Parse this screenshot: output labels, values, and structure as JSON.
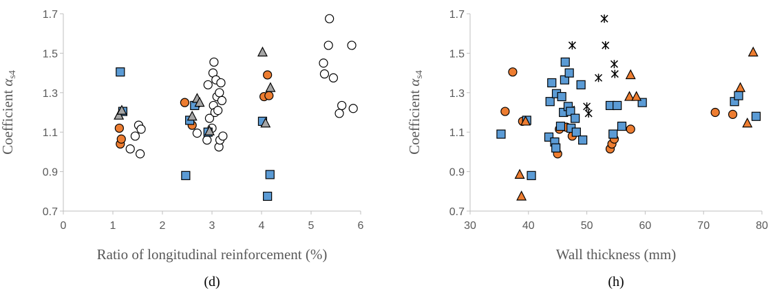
{
  "colors": {
    "orange": "#ED7D31",
    "blue": "#5B9BD5",
    "gray": "#A5A5A5",
    "axis": "#BFBFBF",
    "text": "#595959"
  },
  "chart_data": [
    {
      "type": "scatter",
      "panel_label": "(d)",
      "xlabel": "Ratio of longitudinal reinforcement (%)",
      "ylabel_main": "Coefficient ",
      "ylabel_symbol": "α",
      "ylabel_sub": "s4",
      "xlim": [
        0,
        6
      ],
      "ylim": [
        0.7,
        1.7
      ],
      "xticks": [
        "0",
        "1",
        "2",
        "3",
        "4",
        "5",
        "6"
      ],
      "yticks": [
        "0.7",
        "0.9",
        "1.1",
        "1.3",
        "1.5",
        "1.7"
      ],
      "series": [
        {
          "marker": "circle-open",
          "points": [
            [
              1.35,
              1.015
            ],
            [
              1.45,
              1.08
            ],
            [
              1.52,
              1.135
            ],
            [
              1.55,
              0.99
            ],
            [
              1.57,
              1.115
            ],
            [
              2.7,
              1.095
            ],
            [
              2.9,
              1.06
            ],
            [
              2.92,
              1.34
            ],
            [
              2.95,
              1.17
            ],
            [
              3.0,
              1.12
            ],
            [
              3.02,
              1.4
            ],
            [
              3.03,
              1.235
            ],
            [
              3.04,
              1.455
            ],
            [
              3.06,
              1.2
            ],
            [
              3.08,
              1.365
            ],
            [
              3.1,
              1.28
            ],
            [
              3.12,
              1.21
            ],
            [
              3.14,
              1.025
            ],
            [
              3.15,
              1.3
            ],
            [
              3.16,
              1.06
            ],
            [
              3.18,
              1.35
            ],
            [
              3.2,
              1.26
            ],
            [
              3.22,
              1.08
            ],
            [
              5.25,
              1.45
            ],
            [
              5.27,
              1.395
            ],
            [
              5.35,
              1.54
            ],
            [
              5.37,
              1.675
            ],
            [
              5.45,
              1.375
            ],
            [
              5.57,
              1.195
            ],
            [
              5.62,
              1.235
            ],
            [
              5.82,
              1.54
            ],
            [
              5.85,
              1.22
            ]
          ]
        },
        {
          "marker": "circle-orange",
          "points": [
            [
              1.13,
              1.12
            ],
            [
              1.15,
              1.04
            ],
            [
              1.17,
              1.065
            ],
            [
              2.45,
              1.25
            ],
            [
              2.6,
              1.135
            ],
            [
              2.68,
              1.24
            ],
            [
              4.05,
              1.28
            ],
            [
              4.12,
              1.39
            ],
            [
              4.15,
              1.285
            ]
          ]
        },
        {
          "marker": "square-blue",
          "points": [
            [
              1.15,
              1.405
            ],
            [
              1.2,
              1.205
            ],
            [
              2.47,
              0.88
            ],
            [
              2.55,
              1.16
            ],
            [
              2.65,
              1.235
            ],
            [
              2.92,
              1.1
            ],
            [
              4.02,
              1.155
            ],
            [
              4.12,
              0.775
            ],
            [
              4.17,
              0.885
            ]
          ]
        },
        {
          "marker": "triangle-gray",
          "points": [
            [
              1.12,
              1.185
            ],
            [
              1.18,
              1.21
            ],
            [
              2.6,
              1.18
            ],
            [
              2.7,
              1.27
            ],
            [
              2.75,
              1.25
            ],
            [
              2.95,
              1.105
            ],
            [
              4.02,
              1.505
            ],
            [
              4.08,
              1.145
            ],
            [
              4.18,
              1.325
            ]
          ]
        }
      ]
    },
    {
      "type": "scatter",
      "panel_label": "(h)",
      "xlabel": "Wall thickness (mm)",
      "ylabel_main": "Coefficient ",
      "ylabel_symbol": "α",
      "ylabel_sub": "s4",
      "xlim": [
        30,
        80
      ],
      "ylim": [
        0.7,
        1.7
      ],
      "xticks": [
        "30",
        "40",
        "50",
        "60",
        "70",
        "80"
      ],
      "yticks": [
        "0.7",
        "0.9",
        "1.1",
        "1.3",
        "1.5",
        "1.7"
      ],
      "series": [
        {
          "marker": "asterisk",
          "points": [
            [
              47.3,
              1.215
            ],
            [
              47.5,
              1.54
            ],
            [
              50.0,
              1.23
            ],
            [
              50.3,
              1.195
            ],
            [
              52.0,
              1.375
            ],
            [
              53.0,
              1.675
            ],
            [
              53.2,
              1.54
            ],
            [
              54.7,
              1.445
            ],
            [
              54.8,
              1.395
            ]
          ]
        },
        {
          "marker": "circle-orange",
          "points": [
            [
              36.0,
              1.205
            ],
            [
              37.3,
              1.405
            ],
            [
              39.0,
              1.155
            ],
            [
              45.0,
              0.99
            ],
            [
              45.3,
              1.115
            ],
            [
              46.5,
              1.125
            ],
            [
              47.5,
              1.08
            ],
            [
              54.0,
              1.015
            ],
            [
              54.3,
              1.04
            ],
            [
              54.7,
              1.065
            ],
            [
              57.5,
              1.115
            ],
            [
              72.0,
              1.2
            ],
            [
              75.0,
              1.19
            ]
          ]
        },
        {
          "marker": "square-blue",
          "points": [
            [
              35.3,
              1.09
            ],
            [
              39.7,
              1.16
            ],
            [
              40.5,
              0.88
            ],
            [
              43.5,
              1.075
            ],
            [
              43.7,
              1.255
            ],
            [
              44.0,
              1.35
            ],
            [
              44.5,
              1.05
            ],
            [
              44.7,
              1.02
            ],
            [
              44.8,
              1.295
            ],
            [
              45.5,
              1.13
            ],
            [
              45.7,
              1.28
            ],
            [
              46.0,
              1.2
            ],
            [
              46.2,
              1.365
            ],
            [
              46.3,
              1.455
            ],
            [
              46.8,
              1.23
            ],
            [
              47.0,
              1.4
            ],
            [
              47.2,
              1.205
            ],
            [
              47.3,
              1.12
            ],
            [
              48.0,
              1.17
            ],
            [
              48.2,
              1.1
            ],
            [
              49.0,
              1.34
            ],
            [
              49.3,
              1.06
            ],
            [
              54.0,
              1.235
            ],
            [
              54.5,
              1.09
            ],
            [
              55.2,
              1.235
            ],
            [
              56.0,
              1.13
            ],
            [
              59.5,
              1.25
            ],
            [
              75.3,
              1.255
            ],
            [
              76.0,
              1.285
            ],
            [
              79.0,
              1.18
            ]
          ]
        },
        {
          "marker": "triangle-orange",
          "points": [
            [
              38.5,
              0.885
            ],
            [
              38.8,
              0.775
            ],
            [
              39.5,
              1.155
            ],
            [
              57.3,
              1.28
            ],
            [
              57.5,
              1.39
            ],
            [
              58.5,
              1.28
            ],
            [
              76.3,
              1.325
            ],
            [
              77.5,
              1.145
            ],
            [
              78.5,
              1.505
            ]
          ]
        }
      ]
    }
  ]
}
